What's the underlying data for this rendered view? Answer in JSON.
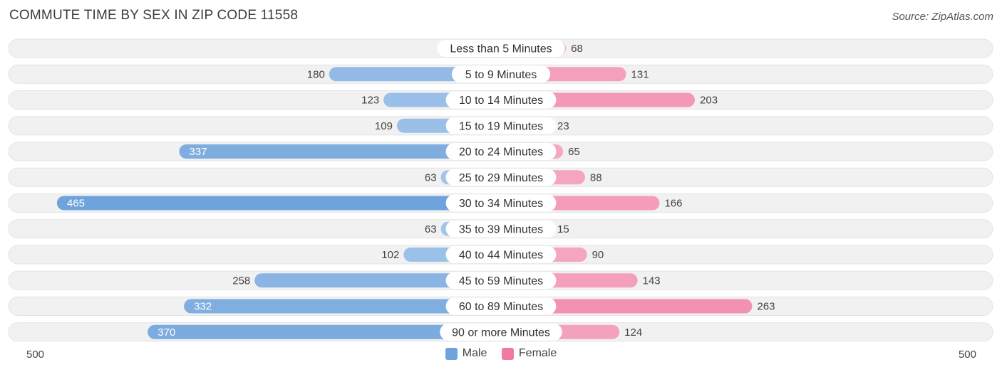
{
  "header": {
    "title": "COMMUTE TIME BY SEX IN ZIP CODE 11558",
    "source": "Source: ZipAtlas.com"
  },
  "axis": {
    "left_label": "500",
    "right_label": "500"
  },
  "legend": {
    "male_label": "Male",
    "female_label": "Female"
  },
  "colors": {
    "male": "#6fa3dc",
    "male_light": "#a9c9ec",
    "female": "#f07aa0",
    "female_light": "#f6afc7",
    "row_bg": "#f1f1f1"
  },
  "chart_data": {
    "type": "bar",
    "orientation": "horizontal-diverging",
    "categories": [
      "Less than 5 Minutes",
      "5 to 9 Minutes",
      "10 to 14 Minutes",
      "15 to 19 Minutes",
      "20 to 24 Minutes",
      "25 to 29 Minutes",
      "30 to 34 Minutes",
      "35 to 39 Minutes",
      "40 to 44 Minutes",
      "45 to 59 Minutes",
      "60 to 89 Minutes",
      "90 or more Minutes"
    ],
    "series": [
      {
        "name": "Male",
        "values": [
          0,
          180,
          123,
          109,
          337,
          63,
          465,
          63,
          102,
          258,
          332,
          370
        ]
      },
      {
        "name": "Female",
        "values": [
          68,
          131,
          203,
          23,
          65,
          88,
          166,
          15,
          90,
          143,
          263,
          124
        ]
      }
    ],
    "xlim": [
      -500,
      500
    ],
    "legend_position": "bottom-center"
  }
}
